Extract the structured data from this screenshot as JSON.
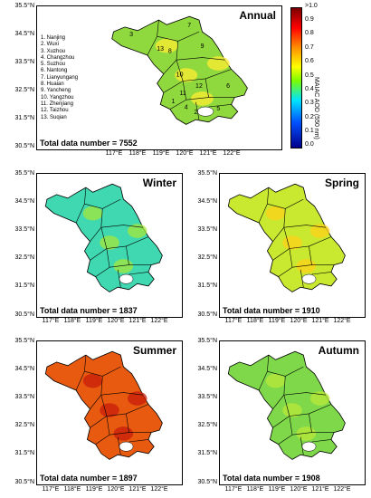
{
  "colorbar": {
    "label": "MAIAC AOD (550 nm)",
    "ticks": [
      ">1.0",
      "0.9",
      "0.8",
      "0.7",
      "0.6",
      "0.5",
      "0.4",
      "0.3",
      "0.2",
      "0.1",
      "0.0"
    ],
    "min": 0.0,
    "max": 1.0,
    "colors": [
      "#00008b",
      "#0050ff",
      "#00e5ff",
      "#7cfc00",
      "#ffff00",
      "#ff8c00",
      "#ff0000",
      "#7a0000"
    ]
  },
  "axes": {
    "y_labels": [
      "35.5°N",
      "34.5°N",
      "33.5°N",
      "32.5°N",
      "31.5°N",
      "30.5°N"
    ],
    "x_labels": [
      "117°E",
      "118°E",
      "119°E",
      "120°E",
      "121°E",
      "122°E"
    ]
  },
  "cities": [
    "1. Nanjing",
    "2. Wuxi",
    "3. Xuzhou",
    "4. Changzhou",
    "5. Suzhou",
    "6. Nantong",
    "7. Lianyungang",
    "8. Huaian",
    "9. Yancheng",
    "10. Yangzhou",
    "11. Zhenjiang",
    "12. Taizhou",
    "13. Suqian"
  ],
  "map_numbers": [
    "1",
    "2",
    "3",
    "4",
    "5",
    "6",
    "7",
    "8",
    "9",
    "10",
    "11",
    "12",
    "13"
  ],
  "panels": [
    {
      "title": "Annual",
      "total": "Total data number = 7552",
      "fill": "#8fd83e",
      "accent": "#ffee33",
      "aod": 0.6
    },
    {
      "title": "Winter",
      "total": "Total data number = 1837",
      "fill": "#3fd8b0",
      "accent": "#a6e83a",
      "aod": 0.5
    },
    {
      "title": "Spring",
      "total": "Total data number = 1910",
      "fill": "#c9e830",
      "accent": "#ffd21a",
      "aod": 0.65
    },
    {
      "title": "Summer",
      "total": "Total data number = 1897",
      "fill": "#e85a10",
      "accent": "#c81e0a",
      "aod": 0.9
    },
    {
      "title": "Autumn",
      "total": "Total data number = 1908",
      "fill": "#7fd84a",
      "accent": "#b8e838",
      "aod": 0.6
    }
  ]
}
